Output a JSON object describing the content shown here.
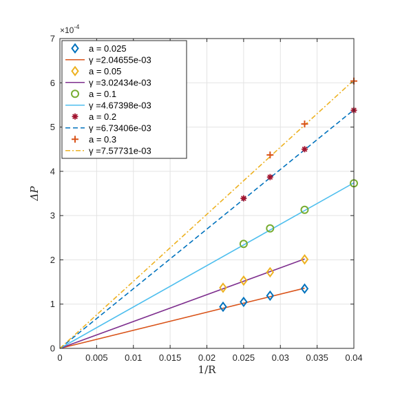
{
  "chart_data": {
    "type": "scatter",
    "xlabel": "1/R",
    "ylabel": "ΔP",
    "xlim": [
      0,
      0.04
    ],
    "ylim": [
      0,
      7
    ],
    "y_multiplier": "×10",
    "y_multiplier_exp": "-4",
    "grid": true,
    "legend_position": "top-left",
    "x_ticks": [
      0,
      0.005,
      0.01,
      0.015,
      0.02,
      0.025,
      0.03,
      0.035,
      0.04
    ],
    "x_tick_labels": [
      "0",
      "0.005",
      "0.01",
      "0.015",
      "0.02",
      "0.025",
      "0.03",
      "0.035",
      "0.04"
    ],
    "y_ticks": [
      0,
      1,
      2,
      3,
      4,
      5,
      6,
      7
    ],
    "y_tick_labels": [
      "0",
      "1",
      "2",
      "3",
      "4",
      "5",
      "6",
      "7"
    ],
    "series": [
      {
        "name": "a = 0.025",
        "marker": "diamond",
        "color": "#0072BD",
        "points": [
          [
            0.0222,
            0.94
          ],
          [
            0.025,
            1.05
          ],
          [
            0.0286,
            1.19
          ],
          [
            0.0333,
            1.35
          ]
        ],
        "fit_label": "γ =2.04655e-03",
        "fit_color": "#D95319",
        "fit_dash": "solid",
        "fit_line": [
          [
            0,
            0
          ],
          [
            0.0333,
            1.36
          ]
        ]
      },
      {
        "name": "a = 0.05",
        "marker": "diamond",
        "color": "#EDB120",
        "points": [
          [
            0.0222,
            1.37
          ],
          [
            0.025,
            1.53
          ],
          [
            0.0286,
            1.72
          ],
          [
            0.0333,
            2.01
          ]
        ],
        "fit_label": "γ =3.02434e-03",
        "fit_color": "#7E2F8E",
        "fit_dash": "solid",
        "fit_line": [
          [
            0,
            0
          ],
          [
            0.0333,
            2.02
          ]
        ]
      },
      {
        "name": "a = 0.1",
        "marker": "circle",
        "color": "#77AC30",
        "points": [
          [
            0.025,
            2.36
          ],
          [
            0.0286,
            2.71
          ],
          [
            0.0333,
            3.13
          ],
          [
            0.04,
            3.73
          ]
        ],
        "fit_label": "γ =4.67398e-03",
        "fit_color": "#4DBEEE",
        "fit_dash": "solid",
        "fit_line": [
          [
            0,
            0
          ],
          [
            0.04,
            3.74
          ]
        ]
      },
      {
        "name": "a = 0.2",
        "marker": "asterisk",
        "color": "#A2142F",
        "points": [
          [
            0.025,
            3.39
          ],
          [
            0.0286,
            3.87
          ],
          [
            0.0333,
            4.5
          ],
          [
            0.04,
            5.38
          ]
        ],
        "fit_label": "γ =6.73406e-03",
        "fit_color": "#0072BD",
        "fit_dash": "dashed",
        "fit_line": [
          [
            0,
            0
          ],
          [
            0.04,
            5.39
          ]
        ]
      },
      {
        "name": "a = 0.3",
        "marker": "plus",
        "color": "#D95319",
        "points": [
          [
            0.0286,
            4.37
          ],
          [
            0.0333,
            5.07
          ],
          [
            0.04,
            6.04
          ]
        ],
        "fit_label": "γ =7.57731e-03",
        "fit_color": "#EDB120",
        "fit_dash": "dashdot",
        "fit_line": [
          [
            0,
            0
          ],
          [
            0.04,
            6.06
          ]
        ]
      }
    ]
  }
}
